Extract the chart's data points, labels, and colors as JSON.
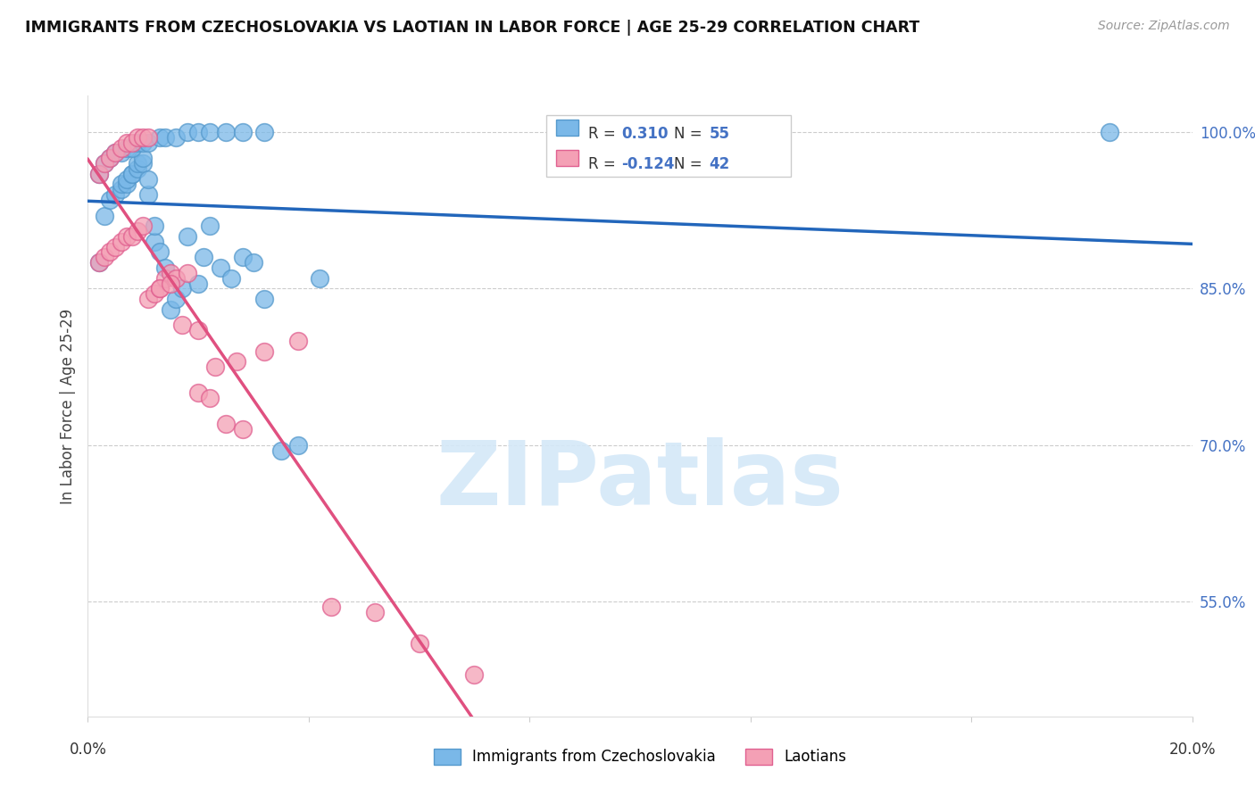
{
  "title": "IMMIGRANTS FROM CZECHOSLOVAKIA VS LAOTIAN IN LABOR FORCE | AGE 25-29 CORRELATION CHART",
  "source": "Source: ZipAtlas.com",
  "ylabel": "In Labor Force | Age 25-29",
  "ytick_labels": [
    "100.0%",
    "85.0%",
    "70.0%",
    "55.0%"
  ],
  "ytick_values": [
    1.0,
    0.85,
    0.7,
    0.55
  ],
  "xlim": [
    0.0,
    0.2
  ],
  "ylim": [
    0.44,
    1.035
  ],
  "r_czech": 0.31,
  "n_czech": 55,
  "r_laotian": -0.124,
  "n_laotian": 42,
  "czech_color": "#7ab8e8",
  "laotian_color": "#f4a0b5",
  "czech_edge_color": "#5599cc",
  "laotian_edge_color": "#e06090",
  "czech_line_color": "#2266bb",
  "laotian_line_color": "#e05080",
  "watermark_color": "#d4e8f8",
  "watermark": "ZIPatlas",
  "czech_x": [
    0.002,
    0.003,
    0.004,
    0.005,
    0.006,
    0.006,
    0.007,
    0.007,
    0.008,
    0.008,
    0.009,
    0.009,
    0.01,
    0.01,
    0.011,
    0.011,
    0.012,
    0.012,
    0.013,
    0.014,
    0.015,
    0.016,
    0.017,
    0.018,
    0.02,
    0.021,
    0.022,
    0.024,
    0.026,
    0.028,
    0.03,
    0.032,
    0.035,
    0.038,
    0.042,
    0.002,
    0.003,
    0.004,
    0.005,
    0.006,
    0.007,
    0.008,
    0.009,
    0.01,
    0.011,
    0.013,
    0.014,
    0.016,
    0.018,
    0.02,
    0.022,
    0.025,
    0.028,
    0.032,
    0.185
  ],
  "czech_y": [
    0.875,
    0.92,
    0.935,
    0.94,
    0.945,
    0.95,
    0.95,
    0.955,
    0.96,
    0.96,
    0.965,
    0.97,
    0.97,
    0.975,
    0.94,
    0.955,
    0.895,
    0.91,
    0.885,
    0.87,
    0.83,
    0.84,
    0.85,
    0.9,
    0.855,
    0.88,
    0.91,
    0.87,
    0.86,
    0.88,
    0.875,
    0.84,
    0.695,
    0.7,
    0.86,
    0.96,
    0.97,
    0.975,
    0.98,
    0.98,
    0.985,
    0.985,
    0.99,
    0.99,
    0.99,
    0.995,
    0.995,
    0.995,
    1.0,
    1.0,
    1.0,
    1.0,
    1.0,
    1.0,
    1.0
  ],
  "laotian_x": [
    0.002,
    0.003,
    0.004,
    0.005,
    0.006,
    0.007,
    0.008,
    0.009,
    0.01,
    0.011,
    0.012,
    0.013,
    0.014,
    0.015,
    0.016,
    0.018,
    0.02,
    0.022,
    0.025,
    0.028,
    0.002,
    0.003,
    0.004,
    0.005,
    0.006,
    0.007,
    0.008,
    0.009,
    0.01,
    0.011,
    0.013,
    0.015,
    0.017,
    0.02,
    0.023,
    0.027,
    0.032,
    0.038,
    0.044,
    0.052,
    0.06,
    0.07
  ],
  "laotian_y": [
    0.875,
    0.88,
    0.885,
    0.89,
    0.895,
    0.9,
    0.9,
    0.905,
    0.91,
    0.84,
    0.845,
    0.85,
    0.86,
    0.865,
    0.86,
    0.865,
    0.75,
    0.745,
    0.72,
    0.715,
    0.96,
    0.97,
    0.975,
    0.98,
    0.985,
    0.99,
    0.99,
    0.995,
    0.995,
    0.995,
    0.85,
    0.855,
    0.815,
    0.81,
    0.775,
    0.78,
    0.79,
    0.8,
    0.545,
    0.54,
    0.51,
    0.48
  ],
  "legend_label_czech": "Immigrants from Czechoslovakia",
  "legend_label_laotian": "Laotians"
}
